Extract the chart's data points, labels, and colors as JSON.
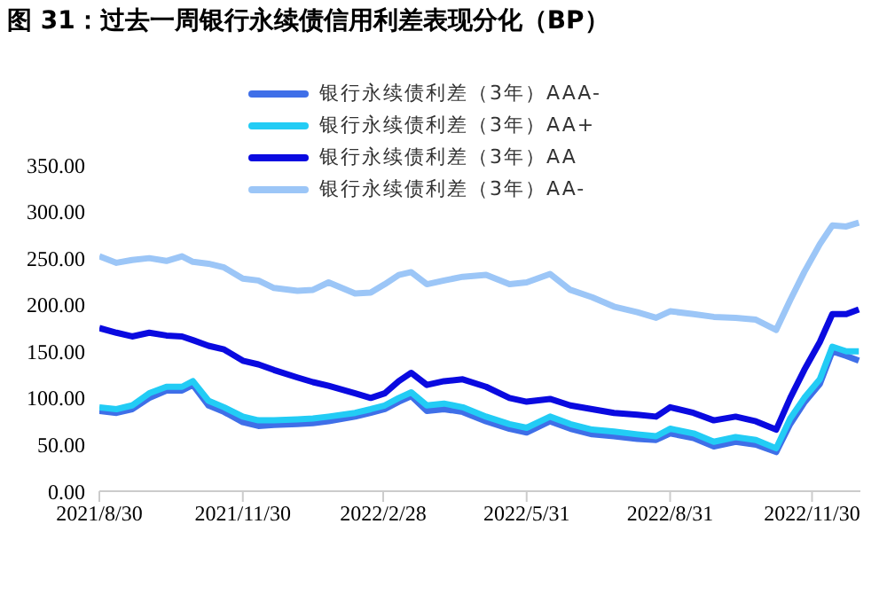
{
  "chart_data": {
    "type": "line",
    "title": "图 31：过去一周银行永续债信用利差表现分化（BP）",
    "x": [
      "2021-08-30",
      "2021-09-10",
      "2021-09-20",
      "2021-10-01",
      "2021-10-12",
      "2021-10-22",
      "2021-10-29",
      "2021-11-08",
      "2021-11-18",
      "2021-11-30",
      "2021-12-10",
      "2021-12-20",
      "2022-01-04",
      "2022-01-14",
      "2022-01-24",
      "2022-02-10",
      "2022-02-20",
      "2022-03-01",
      "2022-03-10",
      "2022-03-18",
      "2022-03-28",
      "2022-04-08",
      "2022-04-20",
      "2022-05-05",
      "2022-05-20",
      "2022-05-31",
      "2022-06-15",
      "2022-06-28",
      "2022-07-12",
      "2022-07-26",
      "2022-08-10",
      "2022-08-22",
      "2022-08-31",
      "2022-09-15",
      "2022-09-28",
      "2022-10-12",
      "2022-10-25",
      "2022-11-07",
      "2022-11-16",
      "2022-11-25",
      "2022-12-05",
      "2022-12-13",
      "2022-12-22",
      "2022-12-30"
    ],
    "series": [
      {
        "name": "银行永续债利差（3年）AAA-",
        "color": "#3f6fe8",
        "values": [
          86,
          84,
          88,
          100,
          108,
          108,
          114,
          92,
          85,
          74,
          70,
          71,
          72,
          73,
          75,
          80,
          84,
          88,
          96,
          102,
          86,
          88,
          85,
          75,
          67,
          63,
          75,
          67,
          61,
          59,
          56,
          55,
          62,
          57,
          48,
          53,
          50,
          42,
          72,
          95,
          115,
          150,
          145,
          140
        ]
      },
      {
        "name": "银行永续债利差（3年）AA+",
        "color": "#22ccf5",
        "values": [
          90,
          88,
          92,
          105,
          112,
          112,
          118,
          97,
          90,
          80,
          76,
          76,
          77,
          78,
          80,
          84,
          88,
          92,
          100,
          106,
          92,
          94,
          90,
          80,
          72,
          68,
          80,
          72,
          66,
          64,
          61,
          59,
          67,
          62,
          53,
          58,
          55,
          46,
          78,
          100,
          120,
          155,
          150,
          150
        ]
      },
      {
        "name": "银行永续债利差（3年）AA",
        "color": "#0a0ae0",
        "values": [
          175,
          170,
          166,
          170,
          167,
          166,
          162,
          156,
          152,
          140,
          136,
          130,
          122,
          117,
          113,
          105,
          100,
          105,
          118,
          127,
          114,
          118,
          120,
          112,
          100,
          96,
          99,
          92,
          88,
          84,
          82,
          80,
          90,
          84,
          76,
          80,
          75,
          66,
          100,
          130,
          160,
          190,
          190,
          195
        ]
      },
      {
        "name": "银行永续债利差（3年）AA-",
        "color": "#9cc6f7",
        "values": [
          252,
          245,
          248,
          250,
          247,
          252,
          246,
          244,
          240,
          228,
          226,
          218,
          215,
          216,
          224,
          212,
          213,
          222,
          232,
          235,
          222,
          226,
          230,
          232,
          222,
          224,
          233,
          216,
          208,
          198,
          192,
          186,
          193,
          190,
          187,
          186,
          184,
          173,
          205,
          235,
          265,
          285,
          284,
          288
        ]
      }
    ],
    "xlim": [
      "2021-08-30",
      "2022-12-31"
    ],
    "xticks": [
      {
        "value": "2021-08-30",
        "label": "2021/8/30"
      },
      {
        "value": "2021-11-30",
        "label": "2021/11/30"
      },
      {
        "value": "2022-02-28",
        "label": "2022/2/28"
      },
      {
        "value": "2022-05-31",
        "label": "2022/5/31"
      },
      {
        "value": "2022-08-31",
        "label": "2022/8/31"
      },
      {
        "value": "2022-11-30",
        "label": "2022/11/30"
      }
    ],
    "ylim": [
      0,
      350
    ],
    "yticks": [
      {
        "value": 0,
        "label": "0.00"
      },
      {
        "value": 50,
        "label": "50.00"
      },
      {
        "value": 100,
        "label": "100.00"
      },
      {
        "value": 150,
        "label": "150.00"
      },
      {
        "value": 200,
        "label": "200.00"
      },
      {
        "value": 250,
        "label": "250.00"
      },
      {
        "value": 300,
        "label": "300.00"
      },
      {
        "value": 350,
        "label": "350.00"
      }
    ],
    "grid": false,
    "legend": "top",
    "marker": "none",
    "line_style": "solid"
  }
}
